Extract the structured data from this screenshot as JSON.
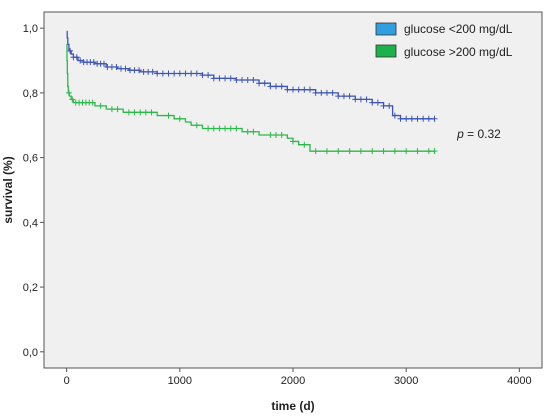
{
  "chart_data": {
    "type": "line",
    "subtype": "kaplan-meier",
    "title": "",
    "xlabel": "time (d)",
    "ylabel": "survival (%)",
    "xlim": [
      -200,
      4200
    ],
    "ylim": [
      -0.05,
      1.05
    ],
    "x_ticks": [
      0,
      1000,
      2000,
      3000,
      4000
    ],
    "x_tick_labels": [
      "0",
      "1000",
      "2000",
      "3000",
      "4000"
    ],
    "y_ticks": [
      0.0,
      0.2,
      0.4,
      0.6,
      0.8,
      1.0
    ],
    "y_tick_labels": [
      "0,0",
      "0,2",
      "0,4",
      "0,6",
      "0,8",
      "1,0"
    ],
    "grid": false,
    "legend_position": "top-right",
    "background": "#f0f0f0",
    "annotation": {
      "label": "p",
      "value": " = 0.32",
      "x": 3450,
      "y": 0.66
    },
    "series": [
      {
        "name": "glucose <200 mg/dL",
        "color": "#3c55b4",
        "legend_color": "#2f9fe0",
        "steps": [
          [
            0,
            0.99
          ],
          [
            5,
            0.97
          ],
          [
            10,
            0.95
          ],
          [
            20,
            0.93
          ],
          [
            40,
            0.92
          ],
          [
            60,
            0.91
          ],
          [
            100,
            0.9
          ],
          [
            150,
            0.895
          ],
          [
            250,
            0.89
          ],
          [
            350,
            0.88
          ],
          [
            450,
            0.875
          ],
          [
            550,
            0.87
          ],
          [
            650,
            0.865
          ],
          [
            800,
            0.86
          ],
          [
            1000,
            0.86
          ],
          [
            1200,
            0.855
          ],
          [
            1300,
            0.845
          ],
          [
            1500,
            0.84
          ],
          [
            1700,
            0.83
          ],
          [
            1800,
            0.82
          ],
          [
            1950,
            0.81
          ],
          [
            2200,
            0.8
          ],
          [
            2400,
            0.79
          ],
          [
            2550,
            0.78
          ],
          [
            2700,
            0.77
          ],
          [
            2800,
            0.76
          ],
          [
            2880,
            0.73
          ],
          [
            2950,
            0.72
          ],
          [
            3250,
            0.72
          ]
        ],
        "censor_x": [
          30,
          60,
          90,
          120,
          150,
          180,
          210,
          240,
          270,
          300,
          330,
          360,
          400,
          440,
          480,
          520,
          560,
          600,
          640,
          680,
          720,
          760,
          800,
          850,
          900,
          950,
          1000,
          1050,
          1100,
          1150,
          1200,
          1250,
          1300,
          1350,
          1400,
          1450,
          1500,
          1550,
          1600,
          1650,
          1700,
          1750,
          1800,
          1850,
          1900,
          1950,
          2000,
          2050,
          2100,
          2150,
          2200,
          2250,
          2300,
          2350,
          2400,
          2450,
          2500,
          2550,
          2600,
          2650,
          2700,
          2750,
          2800,
          2850,
          2900,
          2950,
          3000,
          3050,
          3100,
          3150,
          3200,
          3250
        ]
      },
      {
        "name": "glucose >200 mg/dL",
        "color": "#2db84a",
        "legend_color": "#1cb24b",
        "steps": [
          [
            0,
            0.95
          ],
          [
            3,
            0.9
          ],
          [
            6,
            0.86
          ],
          [
            10,
            0.82
          ],
          [
            15,
            0.8
          ],
          [
            25,
            0.79
          ],
          [
            40,
            0.78
          ],
          [
            60,
            0.77
          ],
          [
            250,
            0.76
          ],
          [
            350,
            0.75
          ],
          [
            500,
            0.74
          ],
          [
            800,
            0.73
          ],
          [
            950,
            0.72
          ],
          [
            1050,
            0.71
          ],
          [
            1100,
            0.7
          ],
          [
            1200,
            0.69
          ],
          [
            1550,
            0.68
          ],
          [
            1700,
            0.67
          ],
          [
            1950,
            0.66
          ],
          [
            2000,
            0.65
          ],
          [
            2050,
            0.64
          ],
          [
            2150,
            0.62
          ],
          [
            3250,
            0.62
          ]
        ],
        "censor_x": [
          20,
          50,
          80,
          110,
          140,
          170,
          200,
          230,
          300,
          400,
          450,
          550,
          600,
          650,
          700,
          750,
          900,
          1000,
          1150,
          1250,
          1300,
          1350,
          1400,
          1450,
          1500,
          1600,
          1650,
          1800,
          1850,
          1900,
          2000,
          2100,
          2200,
          2300,
          2400,
          2500,
          2600,
          2700,
          2800,
          2900,
          3000,
          3100,
          3200,
          3250
        ]
      }
    ]
  }
}
